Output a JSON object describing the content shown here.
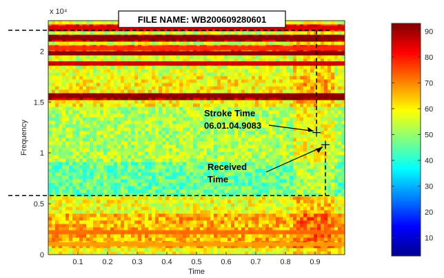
{
  "chart_data": {
    "type": "heatmap",
    "title": "FILE NAME: WB200609280601",
    "xlabel": "Time",
    "ylabel": "Frequency",
    "y_exponent": "x 10⁴",
    "xlim": [
      0,
      1
    ],
    "ylim": [
      0,
      23000
    ],
    "x_ticks": [
      "0.1",
      "0.2",
      "0.3",
      "0.4",
      "0.5",
      "0.6",
      "0.7",
      "0.8",
      "0.9"
    ],
    "y_ticks": [
      "0",
      "0.5",
      "1",
      "1.5",
      "2"
    ],
    "colorbar": {
      "range": [
        3,
        93
      ],
      "ticks": [
        "10",
        "20",
        "30",
        "40",
        "50",
        "60",
        "70",
        "80",
        "90"
      ]
    },
    "bands": [
      {
        "freq": 22300,
        "level": 85
      },
      {
        "freq": 21300,
        "level": 92
      },
      {
        "freq": 20300,
        "level": 78
      },
      {
        "freq": 19800,
        "level": 92
      },
      {
        "freq": 18800,
        "level": 86
      },
      {
        "freq": 15600,
        "level": 92
      },
      {
        "freq": 2200,
        "level": 72
      },
      {
        "freq": 1000,
        "level": 68
      }
    ],
    "dashed_box": {
      "x": [
        0.0,
        0.93
      ],
      "y": [
        5800,
        23000
      ]
    },
    "markers": [
      {
        "x": 0.905,
        "y": 12000
      },
      {
        "x": 0.935,
        "y": 10800
      }
    ],
    "annotations": [
      {
        "lines": [
          "Stroke Time",
          "06.01.04.9083"
        ]
      },
      {
        "lines": [
          "Received",
          "Time"
        ]
      }
    ]
  }
}
